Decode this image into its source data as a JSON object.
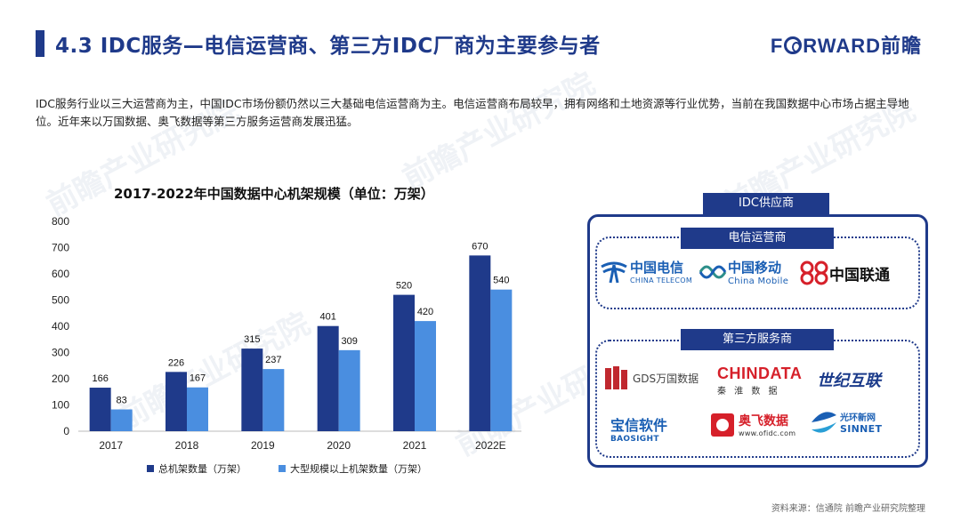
{
  "header": {
    "title": "4.3 IDC服务—电信运营商、第三方IDC厂商为主要参与者",
    "brand_prefix": "F",
    "brand_suffix": "RWARD前瞻"
  },
  "intro": "IDC服务行业以三大运营商为主，中国IDC市场份额仍然以三大基础电信运营商为主。电信运营商布局较早，拥有网络和土地资源等行业优势，当前在我国数据中心市场占据主导地位。近年来以万国数据、奥飞数据等第三方服务运营商发展迅猛。",
  "chart_data": {
    "type": "bar",
    "title": "2017-2022年中国数据中心机架规模（单位：万架）",
    "categories": [
      "2017",
      "2018",
      "2019",
      "2020",
      "2021",
      "2022E"
    ],
    "series": [
      {
        "name": "总机架数量（万架）",
        "values": [
          166,
          226,
          315,
          401,
          520,
          670
        ],
        "color": "#1f3a8a"
      },
      {
        "name": "大型规模以上机架数量（万架）",
        "values": [
          83,
          167,
          237,
          309,
          420,
          540
        ],
        "color": "#4a8ee0"
      }
    ],
    "yticks": [
      0,
      100,
      200,
      300,
      400,
      500,
      600,
      700,
      800
    ],
    "ylim": [
      0,
      800
    ],
    "grid": false,
    "legend": "bottom"
  },
  "panel": {
    "title": "IDC供应商",
    "group1_title": "电信运营商",
    "group2_title": "第三方服务商",
    "telecom": {
      "cn": "中国电信",
      "en": "CHINA TELECOM"
    },
    "mobile": {
      "cn": "中国移动",
      "en": "China Mobile"
    },
    "unicom": {
      "cn": "中国联通"
    },
    "gds": {
      "cn": "GDS万国数据"
    },
    "chindata": {
      "cn": "CHINDATA",
      "sub": "秦 淮 数 据"
    },
    "centurylink": {
      "cn": "世纪互联"
    },
    "baosight": {
      "cn": "宝信软件",
      "en": "BAOSIGHT"
    },
    "ofidc": {
      "cn": "奥飞数据",
      "en": "www.ofidc.com"
    },
    "sinnet": {
      "cn": "光环新网",
      "en": "SINNET"
    }
  },
  "source": "资料来源：信通院  前瞻产业研究院整理",
  "watermark": "前瞻产业研究院",
  "colors": {
    "primary": "#1f3a8a",
    "secondary": "#4a8ee0",
    "red": "#d6202a"
  }
}
